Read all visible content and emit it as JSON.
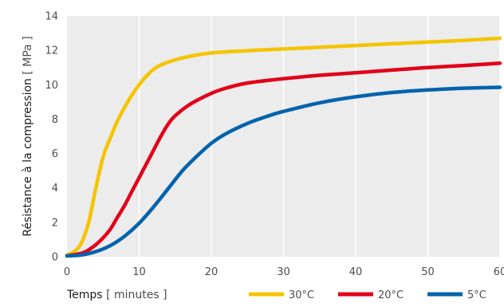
{
  "chart_data": {
    "type": "line",
    "xlabel_main": "Temps",
    "xlabel_unit": "[ minutes ]",
    "ylabel_main": "Résistance à la compression",
    "ylabel_unit": "[ MPa ]",
    "xlim": [
      0,
      60
    ],
    "ylim": [
      0,
      14
    ],
    "x_ticks": [
      0,
      10,
      20,
      30,
      40,
      50,
      60
    ],
    "y_ticks": [
      0,
      2,
      4,
      6,
      8,
      10,
      12,
      14
    ],
    "grid": "vertical",
    "background": "#ececec",
    "grid_color": "#ffffff",
    "legend_position": "bottom-right",
    "series": [
      {
        "name": "30°C",
        "color": "#f5c400",
        "x": [
          0,
          1,
          2,
          3,
          4,
          5,
          6,
          7,
          8,
          9,
          10,
          11,
          12,
          13,
          15,
          17,
          20,
          25,
          30,
          35,
          40,
          45,
          50,
          55,
          60
        ],
        "y": [
          0.1,
          0.3,
          0.8,
          2.0,
          4.0,
          5.8,
          6.9,
          7.9,
          8.7,
          9.4,
          10.0,
          10.5,
          10.9,
          11.15,
          11.45,
          11.65,
          11.85,
          11.98,
          12.08,
          12.18,
          12.28,
          12.38,
          12.48,
          12.58,
          12.7
        ]
      },
      {
        "name": "20°C",
        "color": "#e2001a",
        "x": [
          0,
          2,
          3,
          4,
          5,
          6,
          7,
          8,
          9,
          10,
          11,
          12,
          13,
          14,
          15,
          17,
          20,
          22,
          25,
          30,
          35,
          40,
          45,
          50,
          55,
          60
        ],
        "y": [
          0.05,
          0.2,
          0.4,
          0.7,
          1.1,
          1.6,
          2.3,
          3.0,
          3.8,
          4.6,
          5.4,
          6.2,
          7.0,
          7.7,
          8.2,
          8.85,
          9.5,
          9.8,
          10.1,
          10.35,
          10.55,
          10.7,
          10.85,
          11.0,
          11.12,
          11.25
        ]
      },
      {
        "name": "5°C",
        "color": "#0063ad",
        "x": [
          0,
          2,
          4,
          6,
          8,
          10,
          12,
          14,
          16,
          18,
          20,
          22,
          25,
          28,
          30,
          35,
          40,
          45,
          50,
          55,
          60
        ],
        "y": [
          0.05,
          0.1,
          0.3,
          0.65,
          1.2,
          1.95,
          2.9,
          3.95,
          5.0,
          5.85,
          6.6,
          7.15,
          7.75,
          8.2,
          8.45,
          8.95,
          9.3,
          9.55,
          9.7,
          9.8,
          9.85
        ]
      }
    ]
  }
}
